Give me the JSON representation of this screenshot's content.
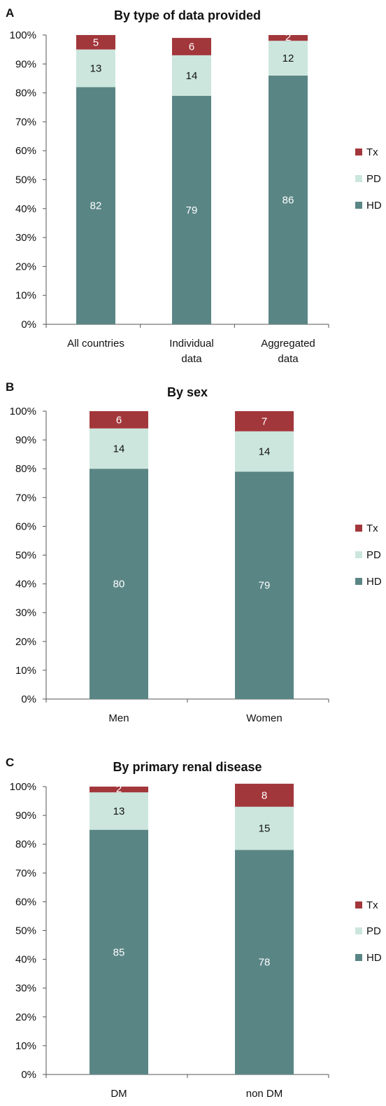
{
  "colors": {
    "HD": "#5a8585",
    "PD": "#cce6de",
    "Tx": "#a2373b",
    "axis": "#555555",
    "text": "#111111",
    "label_light": "#ffffff",
    "label_dark": "#111111"
  },
  "chart_data": [
    {
      "panel": "A",
      "type": "bar",
      "stacked": true,
      "title": "By type of data provided",
      "categories": [
        [
          "All countries"
        ],
        [
          "Individual",
          "data"
        ],
        [
          "Aggregated",
          "data"
        ]
      ],
      "series": [
        {
          "name": "HD",
          "values": [
            82,
            79,
            86
          ]
        },
        {
          "name": "PD",
          "values": [
            13,
            14,
            12
          ]
        },
        {
          "name": "Tx",
          "values": [
            5,
            6,
            2
          ]
        }
      ],
      "yticks": [
        "0%",
        "10%",
        "20%",
        "30%",
        "40%",
        "50%",
        "60%",
        "70%",
        "80%",
        "90%",
        "100%"
      ],
      "ylim": [
        0,
        100
      ],
      "legend": [
        "Tx",
        "PD",
        "HD"
      ],
      "legend_position": "right"
    },
    {
      "panel": "B",
      "type": "bar",
      "stacked": true,
      "title": "By sex",
      "categories": [
        [
          "Men"
        ],
        [
          "Women"
        ]
      ],
      "series": [
        {
          "name": "HD",
          "values": [
            80,
            79
          ]
        },
        {
          "name": "PD",
          "values": [
            14,
            14
          ]
        },
        {
          "name": "Tx",
          "values": [
            6,
            7
          ]
        }
      ],
      "yticks": [
        "0%",
        "10%",
        "20%",
        "30%",
        "40%",
        "50%",
        "60%",
        "70%",
        "80%",
        "90%",
        "100%"
      ],
      "ylim": [
        0,
        100
      ],
      "legend": [
        "Tx",
        "PD",
        "HD"
      ],
      "legend_position": "right"
    },
    {
      "panel": "C",
      "type": "bar",
      "stacked": true,
      "title": "By primary renal disease",
      "categories": [
        [
          "DM"
        ],
        [
          "non DM"
        ]
      ],
      "series": [
        {
          "name": "HD",
          "values": [
            85,
            78
          ]
        },
        {
          "name": "PD",
          "values": [
            13,
            15
          ]
        },
        {
          "name": "Tx",
          "values": [
            2,
            8
          ]
        }
      ],
      "yticks": [
        "0%",
        "10%",
        "20%",
        "30%",
        "40%",
        "50%",
        "60%",
        "70%",
        "80%",
        "90%",
        "100%"
      ],
      "ylim": [
        0,
        100
      ],
      "legend": [
        "Tx",
        "PD",
        "HD"
      ],
      "legend_position": "right"
    }
  ]
}
